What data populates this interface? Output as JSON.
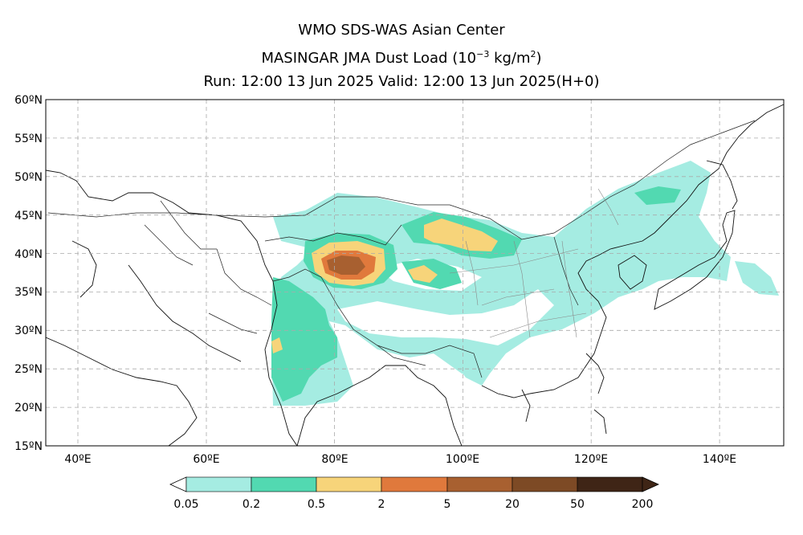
{
  "header": {
    "line1": "WMO SDS-WAS Asian Center",
    "line2_prefix": "MASINGAR JMA Dust Load (10",
    "line2_exp": "−3",
    "line2_mid": " kg/m",
    "line2_exp2": "2",
    "line2_suffix": ")",
    "line3": "Run: 12:00 13 Jun 2025    Valid: 12:00 13 Jun 2025(H+0)"
  },
  "map": {
    "lat_labels": [
      "60ºN",
      "55ºN",
      "50ºN",
      "45ºN",
      "40ºN",
      "35ºN",
      "30ºN",
      "25ºN",
      "20ºN",
      "15ºN"
    ],
    "lon_labels": [
      "40ºE",
      "60ºE",
      "80ºE",
      "100ºE",
      "120ºE",
      "140ºE"
    ],
    "lat_range": [
      15,
      60
    ],
    "lon_range": [
      35,
      150
    ],
    "grid": true,
    "projection": "lat-lon"
  },
  "legend": {
    "colors": [
      "#a5ece2",
      "#52d9b1",
      "#f7d47a",
      "#e0793c",
      "#a86030",
      "#7d4a25",
      "#3f2516"
    ],
    "labels": [
      "0.05",
      "0.2",
      "0.5",
      "2",
      "5",
      "20",
      "50",
      "200"
    ],
    "arrow_left_color": "#ffffff",
    "arrow_right_color": "#3f2516"
  }
}
